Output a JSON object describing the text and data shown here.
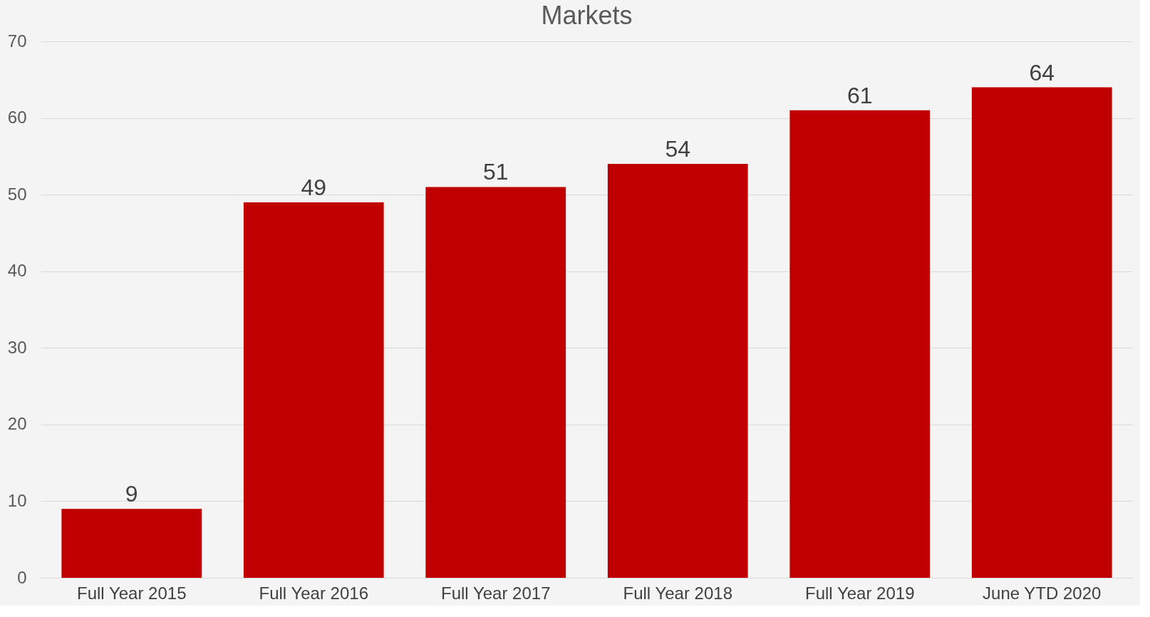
{
  "chart_data": {
    "type": "bar",
    "title": "Markets",
    "categories": [
      "Full Year 2015",
      "Full Year 2016",
      "Full Year 2017",
      "Full Year 2018",
      "Full Year 2019",
      "June YTD 2020"
    ],
    "values": [
      9,
      49,
      51,
      54,
      61,
      64
    ],
    "color": "#c00000",
    "ylim": [
      0,
      70
    ],
    "yticks": [
      0,
      10,
      20,
      30,
      40,
      50,
      60,
      70
    ],
    "grid": "y",
    "data_labels": true
  }
}
